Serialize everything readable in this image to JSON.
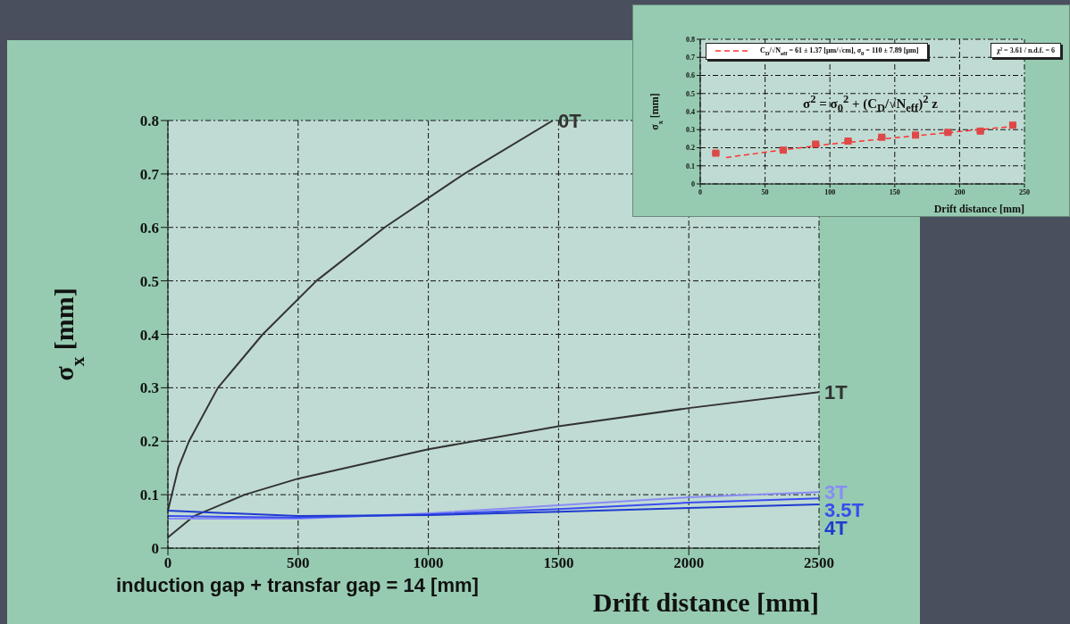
{
  "chart_data": [
    {
      "type": "line",
      "xlabel": "Drift distance [mm]",
      "ylabel": "σ$_{x}$ [mm]",
      "annotations": [
        "induction gap + transfar gap = 14 [mm]"
      ],
      "xlim": [
        0,
        2500
      ],
      "ylim": [
        0,
        0.8
      ],
      "xticks": [
        0,
        500,
        1000,
        1500,
        2000,
        2500
      ],
      "yticks": [
        0,
        0.1,
        0.2,
        0.3,
        0.4,
        0.5,
        0.6,
        0.7,
        0.8
      ],
      "grid": true,
      "series": [
        {
          "name": "0T",
          "color": "#333333",
          "x": [
            0,
            20,
            40,
            81,
            192,
            364,
            570,
            832,
            1137,
            1478
          ],
          "values": [
            0.07,
            0.11,
            0.15,
            0.2,
            0.3,
            0.4,
            0.5,
            0.6,
            0.7,
            0.8
          ]
        },
        {
          "name": "1T",
          "color": "#333333",
          "x": [
            0,
            100,
            295,
            500,
            1000,
            1500,
            2000,
            2500
          ],
          "values": [
            0.02,
            0.06,
            0.1,
            0.13,
            0.185,
            0.228,
            0.262,
            0.292
          ]
        },
        {
          "name": "3T",
          "color": "#8a8cf5",
          "x": [
            0,
            500,
            1000,
            1500,
            2000,
            2500
          ],
          "values": [
            0.055,
            0.055,
            0.065,
            0.08,
            0.095,
            0.105
          ]
        },
        {
          "name": "3.5T",
          "color": "#3a4cf0",
          "x": [
            0,
            500,
            1000,
            1500,
            2000,
            2500
          ],
          "values": [
            0.06,
            0.057,
            0.063,
            0.073,
            0.085,
            0.093
          ]
        },
        {
          "name": "4T",
          "color": "#1f3bcf",
          "x": [
            0,
            500,
            1000,
            1500,
            2000,
            2500
          ],
          "values": [
            0.07,
            0.06,
            0.062,
            0.068,
            0.075,
            0.082
          ]
        }
      ]
    },
    {
      "type": "scatter",
      "xlabel": "Drift distance [mm]",
      "ylabel": "σ$_{x}$ [mm]",
      "annotations": [
        "σ$^{2}$ = σ$_{0}$$^{2}$ + (C$_{D}$/√N$_{eff}$)$^{2}$ z",
        "χ² = 3.61 / n.d.f. = 6"
      ],
      "xlim": [
        0,
        250
      ],
      "ylim": [
        0,
        0.8
      ],
      "xticks": [
        0,
        50,
        100,
        150,
        200,
        250
      ],
      "yticks": [
        0,
        0.1,
        0.2,
        0.3,
        0.4,
        0.5,
        0.6,
        0.7,
        0.8
      ],
      "grid": true,
      "legend": "top left",
      "series": [
        {
          "marker": "square",
          "color": "#e04848",
          "x": [
            12,
            64,
            89,
            114,
            140,
            166,
            191,
            216,
            241
          ],
          "values": [
            0.17,
            0.187,
            0.22,
            0.237,
            0.258,
            0.27,
            0.285,
            0.292,
            0.325
          ],
          "errors": [
            0.006,
            0.005,
            0.005,
            0.005,
            0.005,
            0.005,
            0.005,
            0.005,
            0.006
          ]
        },
        {
          "type": "line",
          "name": "C$_{D}$/√N$_{eff}$ = 61 ± 1.37 [μm/√cm], σ$_{0}$ = 110 ± 7.89 [μm]",
          "color": "#ff3030",
          "line_style": "dashed",
          "x": [
            20,
            50,
            100,
            150,
            200,
            245
          ],
          "values": [
            0.146,
            0.175,
            0.22,
            0.255,
            0.29,
            0.32
          ]
        }
      ]
    }
  ]
}
